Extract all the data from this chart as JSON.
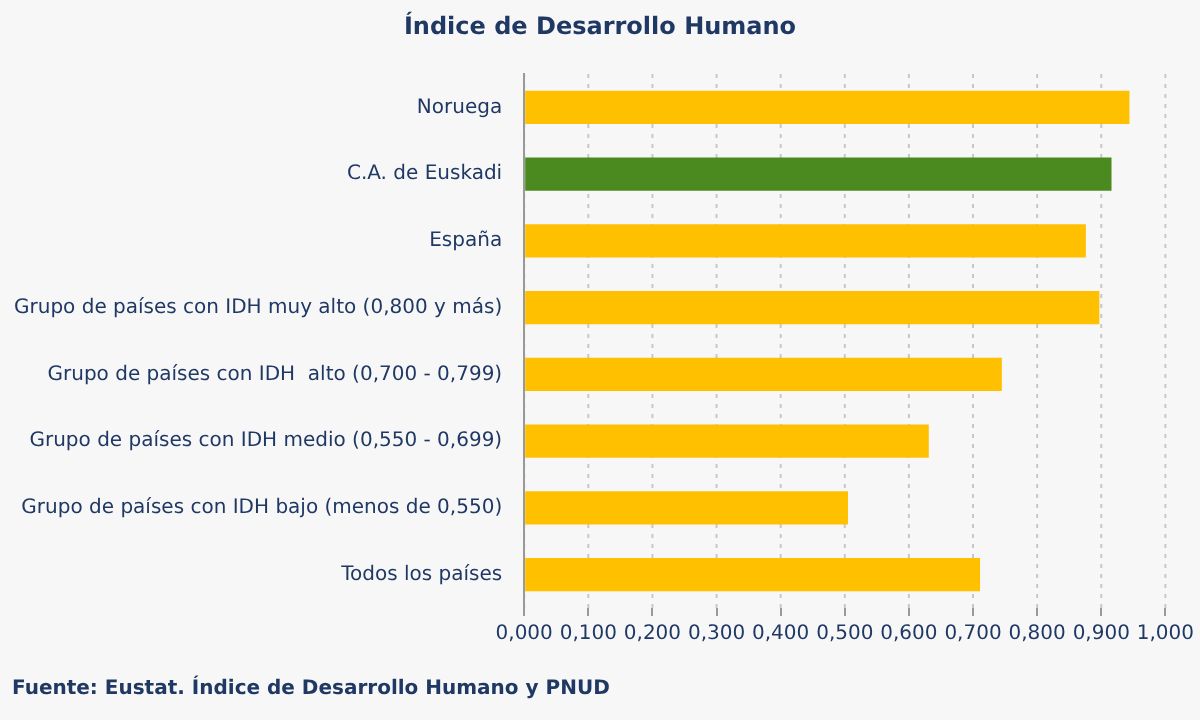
{
  "chart_data": {
    "type": "bar",
    "orientation": "horizontal",
    "title": "Índice de Desarrollo Humano",
    "categories": [
      "Noruega",
      "C.A. de Euskadi",
      "España",
      "Grupo de países con IDH muy alto (0,800 y más)",
      "Grupo de países con IDH  alto (0,700 - 0,799)",
      "Grupo de países con IDH medio (0,550 - 0,699)",
      "Grupo de países con IDH bajo (menos de 0,550)",
      "Todos los países"
    ],
    "values": [
      0.944,
      0.916,
      0.876,
      0.897,
      0.745,
      0.631,
      0.505,
      0.711
    ],
    "colors": [
      "#ffc000",
      "#4b8a1e",
      "#ffc000",
      "#ffc000",
      "#ffc000",
      "#ffc000",
      "#ffc000",
      "#ffc000"
    ],
    "xlim": [
      0,
      1
    ],
    "xticks": [
      {
        "value": 0,
        "label": "0,000"
      },
      {
        "value": 0.1,
        "label": "0,100"
      },
      {
        "value": 0.2,
        "label": "0,200"
      },
      {
        "value": 0.3,
        "label": "0,300"
      },
      {
        "value": 0.4,
        "label": "0,400"
      },
      {
        "value": 0.5,
        "label": "0,500"
      },
      {
        "value": 0.6,
        "label": "0,600"
      },
      {
        "value": 0.7,
        "label": "0,700"
      },
      {
        "value": 0.8,
        "label": "0,800"
      },
      {
        "value": 0.9,
        "label": "0,900"
      },
      {
        "value": 1,
        "label": "1,000"
      }
    ],
    "grid": "x",
    "legend": false,
    "annotations": [
      "Fuente: Eustat. Índice de Desarrollo Humano y PNUD"
    ]
  }
}
